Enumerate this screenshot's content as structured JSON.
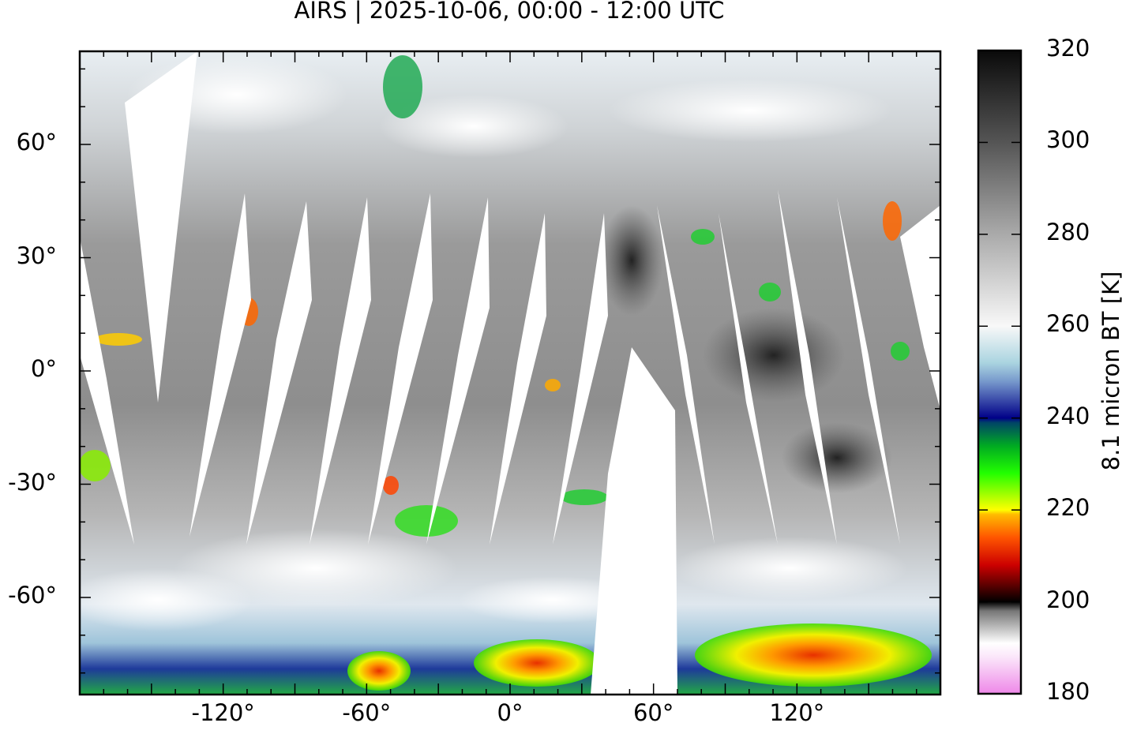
{
  "title": "AIRS | 2025-10-06, 00:00 - 12:00 UTC",
  "map": {
    "projection": "equirectangular",
    "lon_range": [
      -180,
      180
    ],
    "lat_range": [
      -85,
      85
    ],
    "x_ticks": [
      {
        "value": -120,
        "label": "-120°"
      },
      {
        "value": -60,
        "label": "-60°"
      },
      {
        "value": 0,
        "label": "0°"
      },
      {
        "value": 60,
        "label": "60°"
      },
      {
        "value": 120,
        "label": "120°"
      }
    ],
    "y_ticks": [
      {
        "value": 60,
        "label": "60°"
      },
      {
        "value": 30,
        "label": "30°"
      },
      {
        "value": 0,
        "label": "0°"
      },
      {
        "value": -30,
        "label": "-30°"
      },
      {
        "value": -60,
        "label": "-60°"
      }
    ],
    "coastlines": true,
    "data_gaps": "white orbit swath gaps"
  },
  "colorbar": {
    "label": "8.1 micron BT [K]",
    "range": [
      180,
      320
    ],
    "ticks": [
      {
        "value": 320,
        "label": "320"
      },
      {
        "value": 300,
        "label": "300"
      },
      {
        "value": 280,
        "label": "280"
      },
      {
        "value": 260,
        "label": "260"
      },
      {
        "value": 240,
        "label": "240"
      },
      {
        "value": 220,
        "label": "220"
      },
      {
        "value": 200,
        "label": "200"
      },
      {
        "value": 180,
        "label": "180"
      }
    ],
    "colors": [
      {
        "value": 180,
        "color": "#ee88e8"
      },
      {
        "value": 188,
        "color": "#fbe6fa"
      },
      {
        "value": 191,
        "color": "#ffffff"
      },
      {
        "value": 198,
        "color": "#777777"
      },
      {
        "value": 200,
        "color": "#000000"
      },
      {
        "value": 208,
        "color": "#cc0000"
      },
      {
        "value": 214,
        "color": "#ff5500"
      },
      {
        "value": 219,
        "color": "#ffbb00"
      },
      {
        "value": 220,
        "color": "#ffff00"
      },
      {
        "value": 228,
        "color": "#22ff00"
      },
      {
        "value": 234,
        "color": "#00aa22"
      },
      {
        "value": 239,
        "color": "#004466"
      },
      {
        "value": 240,
        "color": "#000088"
      },
      {
        "value": 248,
        "color": "#7799cc"
      },
      {
        "value": 252,
        "color": "#aad4e0"
      },
      {
        "value": 260,
        "color": "#f8f8f8"
      },
      {
        "value": 280,
        "color": "#aaaaaa"
      },
      {
        "value": 300,
        "color": "#555555"
      },
      {
        "value": 320,
        "color": "#0a0a0a"
      }
    ]
  }
}
